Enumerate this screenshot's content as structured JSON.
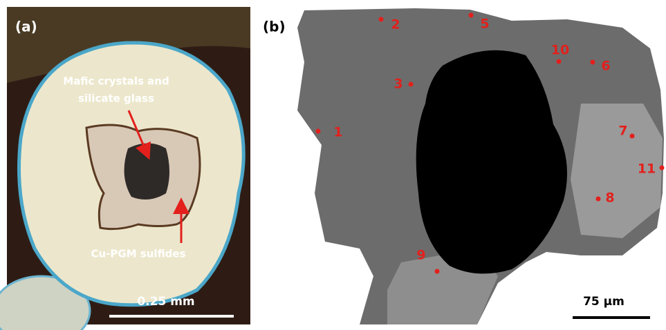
{
  "panel_a": {
    "label": "(a)",
    "annotation_top": [
      "Mafic crystals and",
      "silicate glass"
    ],
    "annotation_bottom": "Cu-PGM sulfides",
    "scale_bar": "0.25 mm"
  },
  "panel_b": {
    "label": "(b)",
    "points": [
      "1",
      "2",
      "3",
      "5",
      "6",
      "7",
      "8",
      "9",
      "10",
      "11"
    ],
    "scale_bar": "75 µm"
  }
}
